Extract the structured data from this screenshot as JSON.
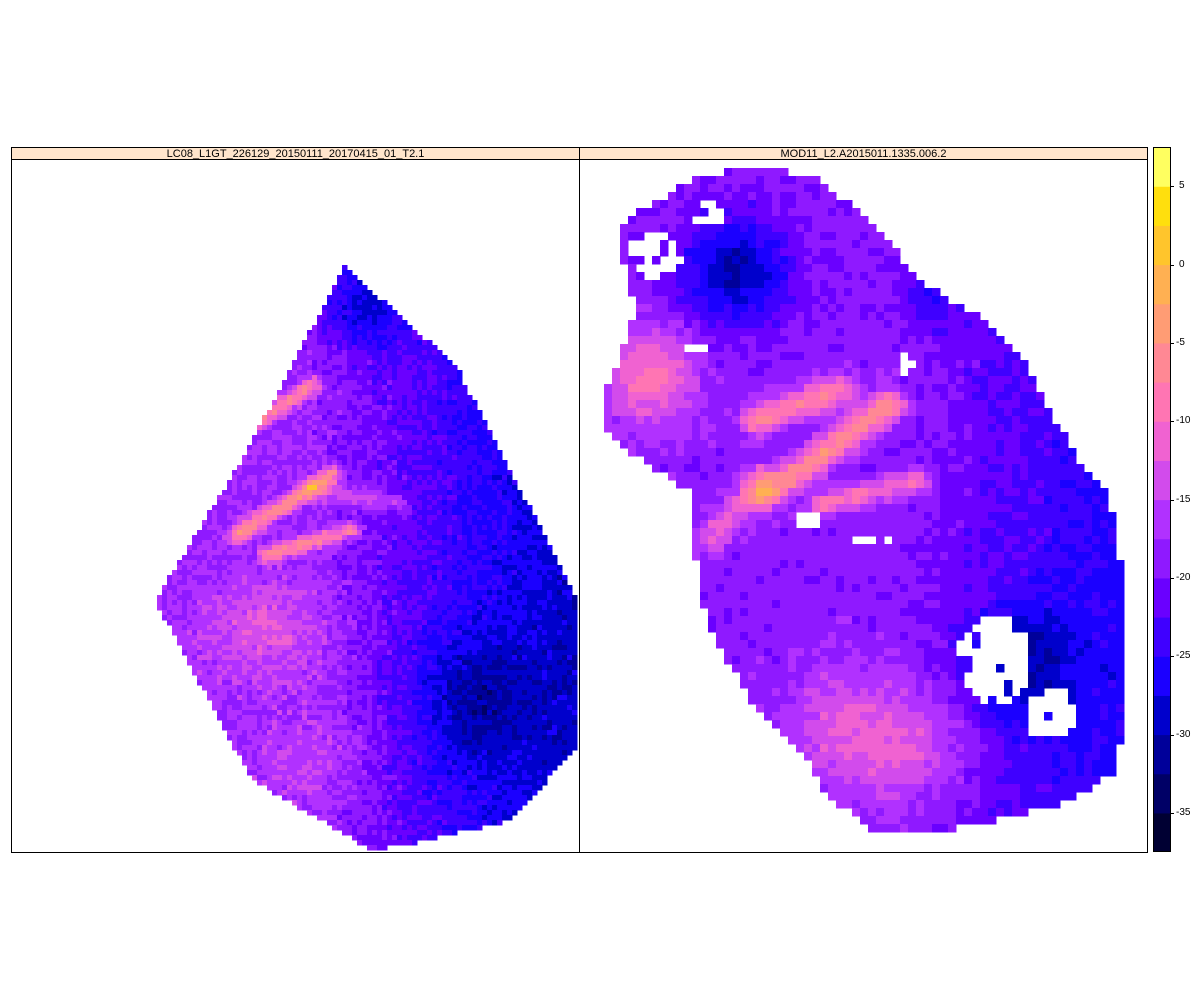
{
  "panels": [
    {
      "title": "LC08_L1GT_226129_20150111_20170415_01_T2.1"
    },
    {
      "title": "MOD11_L2.A2015011.1335.006.2"
    }
  ],
  "chart_data": {
    "type": "heatmap",
    "title": "",
    "xlabel": "",
    "ylabel": "",
    "panels": [
      "LC08_L1GT_226129_20150111_20170415_01_T2.1",
      "MOD11_L2.A2015011.1335.006.2"
    ],
    "colorkey": {
      "range": [
        -37.5,
        7.5
      ],
      "step": 2.5,
      "ticks": [
        5,
        0,
        -5,
        -10,
        -15,
        -20,
        -25,
        -30,
        -35
      ],
      "tick_labels": [
        "5",
        "0",
        "-5",
        "-10",
        "-15",
        "-20",
        "-25",
        "-30",
        "-35"
      ],
      "colors": [
        "#000033",
        "#000066",
        "#00009a",
        "#0000cc",
        "#1b00ff",
        "#3f00ff",
        "#6a00ff",
        "#8f19ff",
        "#b131ff",
        "#d24bec",
        "#f062d1",
        "#ff75b3",
        "#ff8894",
        "#ff9c74",
        "#ffb052",
        "#ffc52c",
        "#ffdf0d",
        "#ffff60"
      ]
    },
    "panel_summary": [
      {
        "name": "LC08_L1GT_226129_20150111_20170415_01_T2.1",
        "value_range_approx": [
          -33,
          5
        ]
      },
      {
        "name": "MOD11_L2.A2015011.1335.006.2",
        "value_range_approx": [
          -35,
          -5
        ]
      }
    ]
  }
}
